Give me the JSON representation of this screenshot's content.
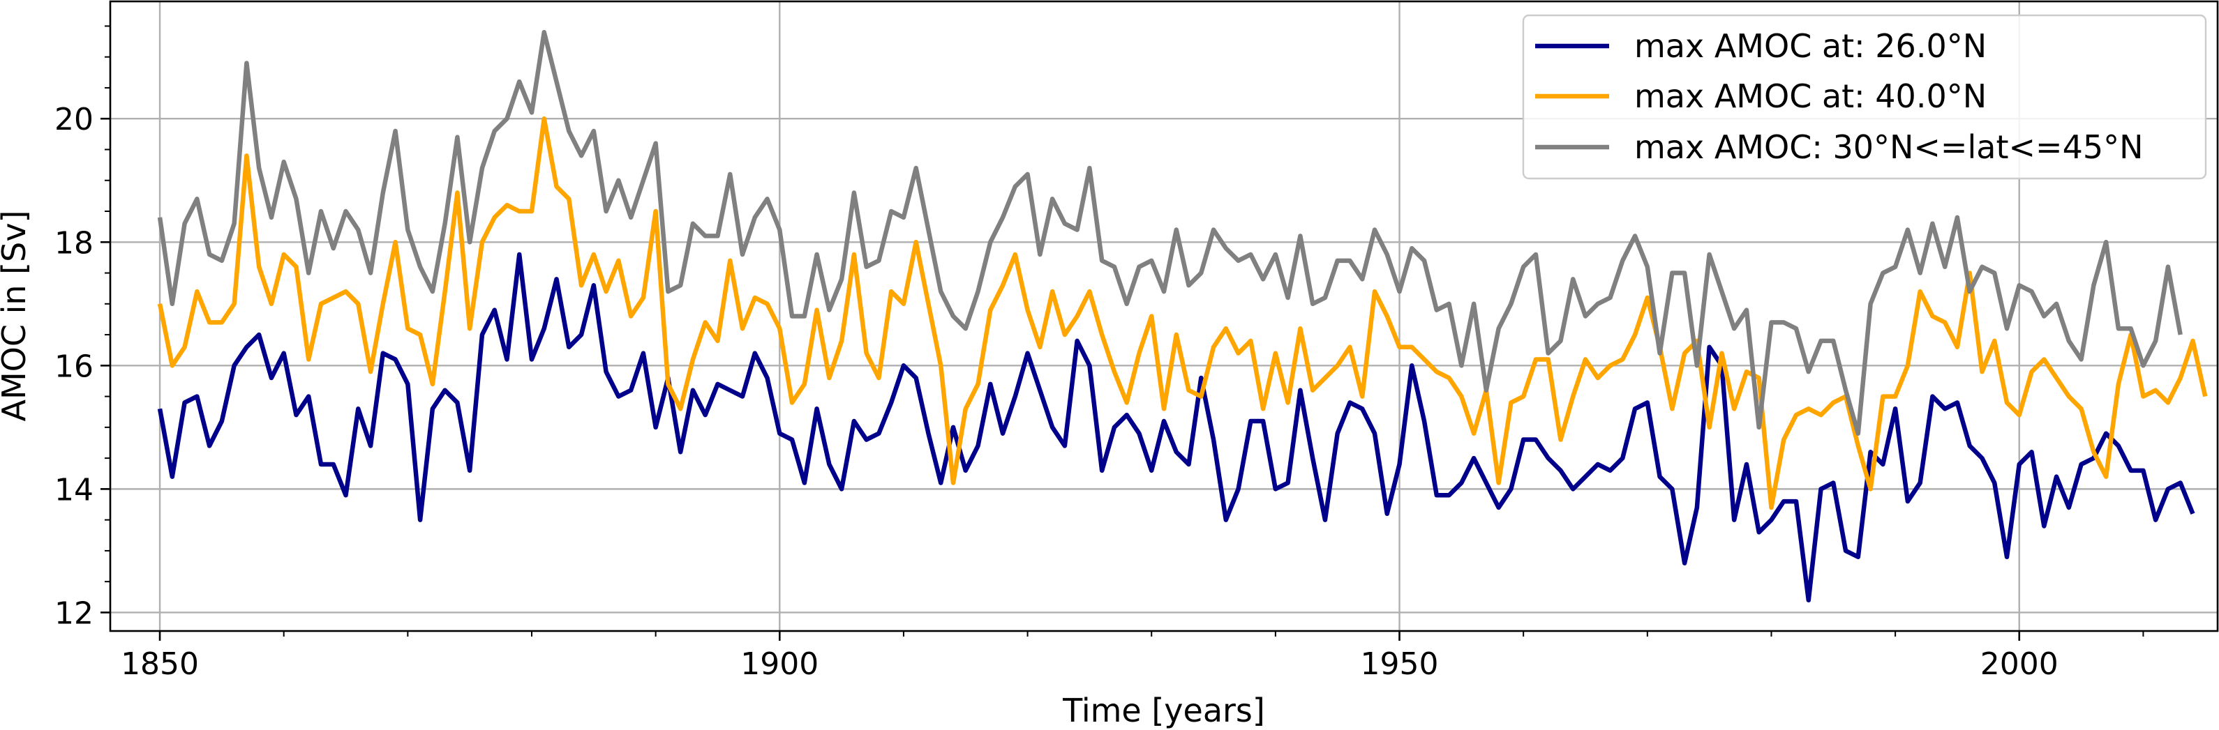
{
  "chart_data": {
    "type": "line",
    "title": "",
    "xlabel": "Time [years]",
    "ylabel": "AMOC in [Sv]",
    "xlim": [
      1846,
      2016
    ],
    "ylim": [
      11.7,
      21.9
    ],
    "x_start": 1850,
    "xticks": [
      1850,
      1900,
      1950,
      2000
    ],
    "yticks": [
      12,
      14,
      16,
      18,
      20
    ],
    "grid": true,
    "legend_position": "top-right",
    "series": [
      {
        "name": "max AMOC at: 26.0°N",
        "color": "#00008b",
        "values": [
          15.3,
          14.2,
          15.4,
          15.5,
          14.7,
          15.1,
          16.0,
          16.3,
          16.5,
          15.8,
          16.2,
          15.2,
          15.5,
          14.4,
          14.4,
          13.9,
          15.3,
          14.7,
          16.2,
          16.1,
          15.7,
          13.5,
          15.3,
          15.6,
          15.4,
          14.3,
          16.5,
          16.9,
          16.1,
          17.8,
          16.1,
          16.6,
          17.4,
          16.3,
          16.5,
          17.3,
          15.9,
          15.5,
          15.6,
          16.2,
          15.0,
          15.8,
          14.6,
          15.6,
          15.2,
          15.7,
          15.6,
          15.5,
          16.2,
          15.8,
          14.9,
          14.8,
          14.1,
          15.3,
          14.4,
          14.0,
          15.1,
          14.8,
          14.9,
          15.4,
          16.0,
          15.8,
          14.9,
          14.1,
          15.0,
          14.3,
          14.7,
          15.7,
          14.9,
          15.5,
          16.2,
          15.6,
          15.0,
          14.7,
          16.4,
          16.0,
          14.3,
          15.0,
          15.2,
          14.9,
          14.3,
          15.1,
          14.6,
          14.4,
          15.8,
          14.8,
          13.5,
          14.0,
          15.1,
          15.1,
          14.0,
          14.1,
          15.6,
          14.5,
          13.5,
          14.9,
          15.4,
          15.3,
          14.9,
          13.6,
          14.4,
          16.0,
          15.1,
          13.9,
          13.9,
          14.1,
          14.5,
          14.1,
          13.7,
          14.0,
          14.8,
          14.8,
          14.5,
          14.3,
          14.0,
          14.2,
          14.4,
          14.3,
          14.5,
          15.3,
          15.4,
          14.2,
          14.0,
          12.8,
          13.7,
          16.3,
          16.0,
          13.5,
          14.4,
          13.3,
          13.5,
          13.8,
          13.8,
          12.2,
          14.0,
          14.1,
          13.0,
          12.9,
          14.6,
          14.4,
          15.3,
          13.8,
          14.1,
          15.5,
          15.3,
          15.4,
          14.7,
          14.5,
          14.1,
          12.9,
          14.4,
          14.6,
          13.4,
          14.2,
          13.7,
          14.4,
          14.5,
          14.9,
          14.7,
          14.3,
          14.3,
          13.5,
          14.0,
          14.1,
          13.6
        ]
      },
      {
        "name": "max AMOC at: 40.0°N",
        "color": "#ffa500",
        "values": [
          17.0,
          16.0,
          16.3,
          17.2,
          16.7,
          16.7,
          17.0,
          19.4,
          17.6,
          17.0,
          17.8,
          17.6,
          16.1,
          17.0,
          17.1,
          17.2,
          17.0,
          15.9,
          17.0,
          18.0,
          16.6,
          16.5,
          15.7,
          17.2,
          18.8,
          16.6,
          18.0,
          18.4,
          18.6,
          18.5,
          18.5,
          20.0,
          18.9,
          18.7,
          17.3,
          17.8,
          17.2,
          17.7,
          16.8,
          17.1,
          18.5,
          15.7,
          15.3,
          16.1,
          16.7,
          16.4,
          17.7,
          16.6,
          17.1,
          17.0,
          16.6,
          15.4,
          15.7,
          16.9,
          15.8,
          16.4,
          17.8,
          16.2,
          15.8,
          17.2,
          17.0,
          18.0,
          17.0,
          16.0,
          14.1,
          15.3,
          15.7,
          16.9,
          17.3,
          17.8,
          16.9,
          16.3,
          17.2,
          16.5,
          16.8,
          17.2,
          16.5,
          15.9,
          15.4,
          16.2,
          16.8,
          15.3,
          16.5,
          15.6,
          15.5,
          16.3,
          16.6,
          16.2,
          16.4,
          15.3,
          16.2,
          15.4,
          16.6,
          15.6,
          15.8,
          16.0,
          16.3,
          15.5,
          17.2,
          16.8,
          16.3,
          16.3,
          16.1,
          15.9,
          15.8,
          15.5,
          14.9,
          15.6,
          14.1,
          15.4,
          15.5,
          16.1,
          16.1,
          14.8,
          15.5,
          16.1,
          15.8,
          16.0,
          16.1,
          16.5,
          17.1,
          16.3,
          15.3,
          16.2,
          16.4,
          15.0,
          16.2,
          15.3,
          15.9,
          15.8,
          13.7,
          14.8,
          15.2,
          15.3,
          15.2,
          15.4,
          15.5,
          14.7,
          14.0,
          15.5,
          15.5,
          16.0,
          17.2,
          16.8,
          16.7,
          16.3,
          17.5,
          15.9,
          16.4,
          15.4,
          15.2,
          15.9,
          16.1,
          15.8,
          15.5,
          15.3,
          14.6,
          14.2,
          15.7,
          16.5,
          15.5,
          15.6,
          15.4,
          15.8,
          16.4,
          15.5
        ]
      },
      {
        "name": "max AMOC: 30°N<=lat<=45°N",
        "color": "#808080",
        "values": [
          18.4,
          17.0,
          18.3,
          18.7,
          17.8,
          17.7,
          18.3,
          20.9,
          19.2,
          18.4,
          19.3,
          18.7,
          17.5,
          18.5,
          17.9,
          18.5,
          18.2,
          17.5,
          18.8,
          19.8,
          18.2,
          17.6,
          17.2,
          18.3,
          19.7,
          18.0,
          19.2,
          19.8,
          20.0,
          20.6,
          20.1,
          21.4,
          20.6,
          19.8,
          19.4,
          19.8,
          18.5,
          19.0,
          18.4,
          19.0,
          19.6,
          17.2,
          17.3,
          18.3,
          18.1,
          18.1,
          19.1,
          17.8,
          18.4,
          18.7,
          18.2,
          16.8,
          16.8,
          17.8,
          16.9,
          17.4,
          18.8,
          17.6,
          17.7,
          18.5,
          18.4,
          19.2,
          18.2,
          17.2,
          16.8,
          16.6,
          17.2,
          18.0,
          18.4,
          18.9,
          19.1,
          17.8,
          18.7,
          18.3,
          18.2,
          19.2,
          17.7,
          17.6,
          17.0,
          17.6,
          17.7,
          17.2,
          18.2,
          17.3,
          17.5,
          18.2,
          17.9,
          17.7,
          17.8,
          17.4,
          17.8,
          17.1,
          18.1,
          17.0,
          17.1,
          17.7,
          17.7,
          17.4,
          18.2,
          17.8,
          17.2,
          17.9,
          17.7,
          16.9,
          17.0,
          16.0,
          17.0,
          15.6,
          16.6,
          17.0,
          17.6,
          17.8,
          16.2,
          16.4,
          17.4,
          16.8,
          17.0,
          17.1,
          17.7,
          18.1,
          17.6,
          16.2,
          17.5,
          17.5,
          16.0,
          17.8,
          17.2,
          16.6,
          16.9,
          15.0,
          16.7,
          16.7,
          16.6,
          15.9,
          16.4,
          16.4,
          15.6,
          14.9,
          17.0,
          17.5,
          17.6,
          18.2,
          17.5,
          18.3,
          17.6,
          18.4,
          17.2,
          17.6,
          17.5,
          16.6,
          17.3,
          17.2,
          16.8,
          17.0,
          16.4,
          16.1,
          17.3,
          18.0,
          16.6,
          16.6,
          16.0,
          16.4,
          17.6,
          16.5
        ]
      }
    ]
  }
}
